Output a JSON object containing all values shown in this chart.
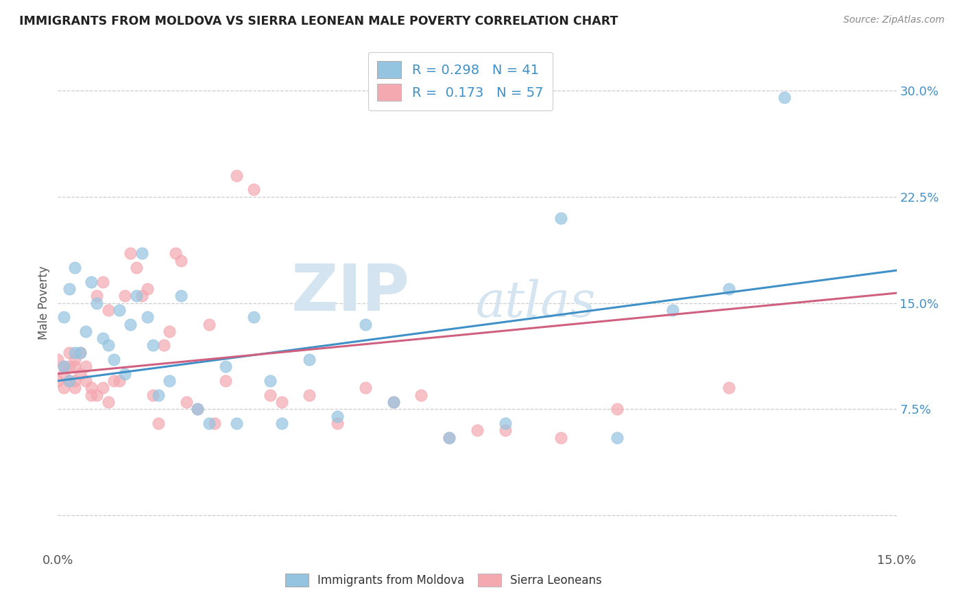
{
  "title": "IMMIGRANTS FROM MOLDOVA VS SIERRA LEONEAN MALE POVERTY CORRELATION CHART",
  "source": "Source: ZipAtlas.com",
  "ylabel": "Male Poverty",
  "xlim": [
    0,
    0.15
  ],
  "ylim": [
    -0.025,
    0.325
  ],
  "xticks": [
    0.0,
    0.05,
    0.1,
    0.15
  ],
  "xtick_labels": [
    "0.0%",
    "",
    "",
    "15.0%"
  ],
  "ytick_labels_right": [
    "",
    "7.5%",
    "15.0%",
    "22.5%",
    "30.0%"
  ],
  "ytick_positions_right": [
    0.0,
    0.075,
    0.15,
    0.225,
    0.3
  ],
  "legend_r1": "R = 0.298   N = 41",
  "legend_r2": "R =  0.173   N = 57",
  "blue_color": "#94c4e0",
  "pink_color": "#f4a8b0",
  "line_blue": "#4090c8",
  "line_pink": "#d06080",
  "watermark_color": "#d4e4f0",
  "watermark": "ZIPatlas",
  "background_color": "#ffffff",
  "grid_color": "#cccccc",
  "scatter_blue_x": [
    0.001,
    0.002,
    0.001,
    0.002,
    0.003,
    0.003,
    0.004,
    0.005,
    0.006,
    0.007,
    0.008,
    0.009,
    0.01,
    0.011,
    0.012,
    0.013,
    0.014,
    0.015,
    0.016,
    0.017,
    0.018,
    0.02,
    0.022,
    0.025,
    0.027,
    0.03,
    0.032,
    0.035,
    0.038,
    0.04,
    0.045,
    0.05,
    0.055,
    0.06,
    0.07,
    0.08,
    0.09,
    0.1,
    0.11,
    0.12,
    0.13
  ],
  "scatter_blue_y": [
    0.105,
    0.095,
    0.14,
    0.16,
    0.115,
    0.175,
    0.115,
    0.13,
    0.165,
    0.15,
    0.125,
    0.12,
    0.11,
    0.145,
    0.1,
    0.135,
    0.155,
    0.185,
    0.14,
    0.12,
    0.085,
    0.095,
    0.155,
    0.075,
    0.065,
    0.105,
    0.065,
    0.14,
    0.095,
    0.065,
    0.11,
    0.07,
    0.135,
    0.08,
    0.055,
    0.065,
    0.21,
    0.055,
    0.145,
    0.16,
    0.295
  ],
  "scatter_pink_x": [
    0.0,
    0.0,
    0.001,
    0.001,
    0.001,
    0.002,
    0.002,
    0.002,
    0.003,
    0.003,
    0.003,
    0.003,
    0.004,
    0.004,
    0.005,
    0.005,
    0.006,
    0.006,
    0.007,
    0.007,
    0.008,
    0.008,
    0.009,
    0.009,
    0.01,
    0.011,
    0.012,
    0.013,
    0.014,
    0.015,
    0.016,
    0.017,
    0.018,
    0.019,
    0.02,
    0.021,
    0.022,
    0.023,
    0.025,
    0.027,
    0.028,
    0.03,
    0.032,
    0.035,
    0.038,
    0.04,
    0.045,
    0.05,
    0.055,
    0.06,
    0.065,
    0.07,
    0.075,
    0.08,
    0.09,
    0.1,
    0.12
  ],
  "scatter_pink_y": [
    0.11,
    0.095,
    0.09,
    0.1,
    0.105,
    0.095,
    0.105,
    0.115,
    0.09,
    0.095,
    0.105,
    0.11,
    0.1,
    0.115,
    0.095,
    0.105,
    0.085,
    0.09,
    0.085,
    0.155,
    0.09,
    0.165,
    0.145,
    0.08,
    0.095,
    0.095,
    0.155,
    0.185,
    0.175,
    0.155,
    0.16,
    0.085,
    0.065,
    0.12,
    0.13,
    0.185,
    0.18,
    0.08,
    0.075,
    0.135,
    0.065,
    0.095,
    0.24,
    0.23,
    0.085,
    0.08,
    0.085,
    0.065,
    0.09,
    0.08,
    0.085,
    0.055,
    0.06,
    0.06,
    0.055,
    0.075,
    0.09
  ]
}
